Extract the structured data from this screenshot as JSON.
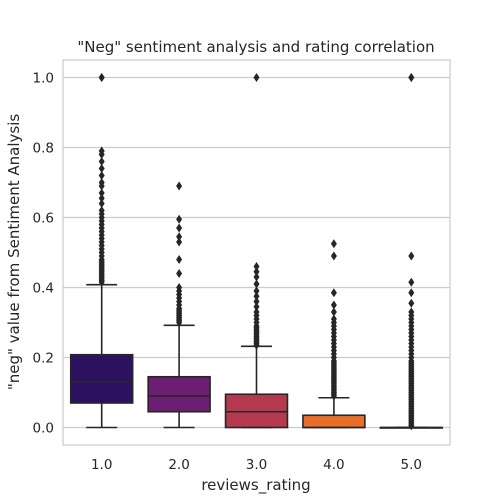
{
  "chart_data": {
    "type": "box",
    "title": "\"Neg\" sentiment analysis and rating correlation",
    "xlabel": "reviews_rating",
    "ylabel": "\"neg\" value from Sentiment Analysis",
    "categories": [
      "1.0",
      "2.0",
      "3.0",
      "4.0",
      "5.0"
    ],
    "ylim": [
      -0.05,
      1.05
    ],
    "yticks": [
      0.0,
      0.2,
      0.4,
      0.6,
      0.8,
      1.0
    ],
    "ytick_labels": [
      "0.0",
      "0.2",
      "0.4",
      "0.6",
      "0.8",
      "1.0"
    ],
    "grid": "horizontal",
    "boxes": [
      {
        "category": "1.0",
        "whisker_low": 0.0,
        "q1": 0.07,
        "median": 0.13,
        "q3": 0.208,
        "whisker_high": 0.408,
        "color": "#2c1160",
        "outliers": [
          0.415,
          0.42,
          0.425,
          0.43,
          0.435,
          0.44,
          0.445,
          0.45,
          0.455,
          0.46,
          0.465,
          0.47,
          0.475,
          0.48,
          0.49,
          0.5,
          0.51,
          0.52,
          0.53,
          0.54,
          0.55,
          0.56,
          0.57,
          0.58,
          0.59,
          0.6,
          0.61,
          0.62,
          0.64,
          0.655,
          0.67,
          0.69,
          0.7,
          0.72,
          0.74,
          0.76,
          0.78,
          0.79,
          1.0,
          1.0
        ]
      },
      {
        "category": "2.0",
        "whisker_low": 0.0,
        "q1": 0.045,
        "median": 0.09,
        "q3": 0.145,
        "whisker_high": 0.292,
        "color": "#6c1f72",
        "outliers": [
          0.3,
          0.305,
          0.31,
          0.315,
          0.32,
          0.325,
          0.33,
          0.335,
          0.34,
          0.35,
          0.36,
          0.37,
          0.38,
          0.39,
          0.4,
          0.44,
          0.48,
          0.53,
          0.545,
          0.57,
          0.595,
          0.69
        ]
      },
      {
        "category": "3.0",
        "whisker_low": 0.0,
        "q1": 0.0,
        "median": 0.045,
        "q3": 0.095,
        "whisker_high": 0.232,
        "color": "#b5394f",
        "outliers": [
          0.235,
          0.24,
          0.245,
          0.25,
          0.255,
          0.26,
          0.265,
          0.27,
          0.275,
          0.28,
          0.285,
          0.29,
          0.3,
          0.31,
          0.32,
          0.33,
          0.345,
          0.36,
          0.375,
          0.39,
          0.41,
          0.43,
          0.445,
          0.46,
          1.0
        ]
      },
      {
        "category": "4.0",
        "whisker_low": 0.0,
        "q1": 0.0,
        "median": 0.0,
        "q3": 0.035,
        "whisker_high": 0.085,
        "color": "#e96e2a",
        "outliers": [
          0.09,
          0.095,
          0.1,
          0.105,
          0.11,
          0.115,
          0.12,
          0.125,
          0.13,
          0.135,
          0.14,
          0.145,
          0.15,
          0.155,
          0.16,
          0.165,
          0.17,
          0.175,
          0.18,
          0.185,
          0.19,
          0.2,
          0.21,
          0.22,
          0.23,
          0.24,
          0.25,
          0.26,
          0.27,
          0.28,
          0.29,
          0.3,
          0.31,
          0.33,
          0.35,
          0.385,
          0.49,
          0.525
        ]
      },
      {
        "category": "5.0",
        "whisker_low": 0.0,
        "q1": 0.0,
        "median": 0.0,
        "q3": 0.0,
        "whisker_high": 0.0,
        "color": "#f3c43a",
        "outliers": [
          0.005,
          0.01,
          0.015,
          0.02,
          0.025,
          0.03,
          0.035,
          0.04,
          0.045,
          0.05,
          0.055,
          0.06,
          0.065,
          0.07,
          0.075,
          0.08,
          0.085,
          0.09,
          0.095,
          0.1,
          0.105,
          0.11,
          0.115,
          0.12,
          0.125,
          0.13,
          0.135,
          0.14,
          0.145,
          0.15,
          0.155,
          0.16,
          0.165,
          0.17,
          0.175,
          0.18,
          0.185,
          0.19,
          0.2,
          0.21,
          0.22,
          0.23,
          0.24,
          0.25,
          0.26,
          0.27,
          0.28,
          0.29,
          0.3,
          0.31,
          0.32,
          0.33,
          0.355,
          0.385,
          0.415,
          0.49,
          1.0,
          1.0
        ]
      }
    ]
  }
}
